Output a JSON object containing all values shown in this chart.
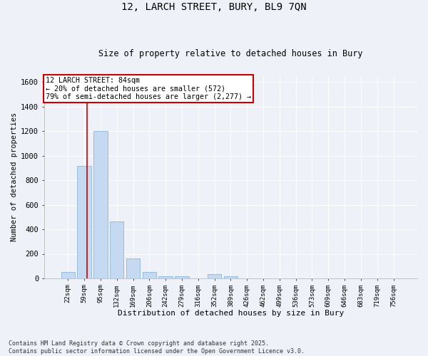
{
  "title_line1": "12, LARCH STREET, BURY, BL9 7QN",
  "title_line2": "Size of property relative to detached houses in Bury",
  "xlabel": "Distribution of detached houses by size in Bury",
  "ylabel": "Number of detached properties",
  "categories": [
    "22sqm",
    "59sqm",
    "95sqm",
    "132sqm",
    "169sqm",
    "206sqm",
    "242sqm",
    "279sqm",
    "316sqm",
    "352sqm",
    "389sqm",
    "426sqm",
    "462sqm",
    "499sqm",
    "536sqm",
    "573sqm",
    "609sqm",
    "646sqm",
    "683sqm",
    "719sqm",
    "756sqm"
  ],
  "values": [
    50,
    920,
    1200,
    465,
    165,
    50,
    20,
    15,
    0,
    35,
    15,
    0,
    0,
    0,
    0,
    0,
    0,
    0,
    0,
    0,
    0
  ],
  "bar_color": "#c5d9f0",
  "bar_edge_color": "#7baed6",
  "vline_color": "#cc0000",
  "vline_xdata": 1.18,
  "annotation_text_line1": "12 LARCH STREET: 84sqm",
  "annotation_text_line2": "← 20% of detached houses are smaller (572)",
  "annotation_text_line3": "79% of semi-detached houses are larger (2,277) →",
  "annotation_box_color": "#cc0000",
  "annotation_fill_color": "#ffffff",
  "ylim": [
    0,
    1650
  ],
  "yticks": [
    0,
    200,
    400,
    600,
    800,
    1000,
    1200,
    1400,
    1600
  ],
  "background_color": "#eef2f8",
  "plot_background": "#eef2f8",
  "grid_color": "#ffffff",
  "footer_line1": "Contains HM Land Registry data © Crown copyright and database right 2025.",
  "footer_line2": "Contains public sector information licensed under the Open Government Licence v3.0."
}
